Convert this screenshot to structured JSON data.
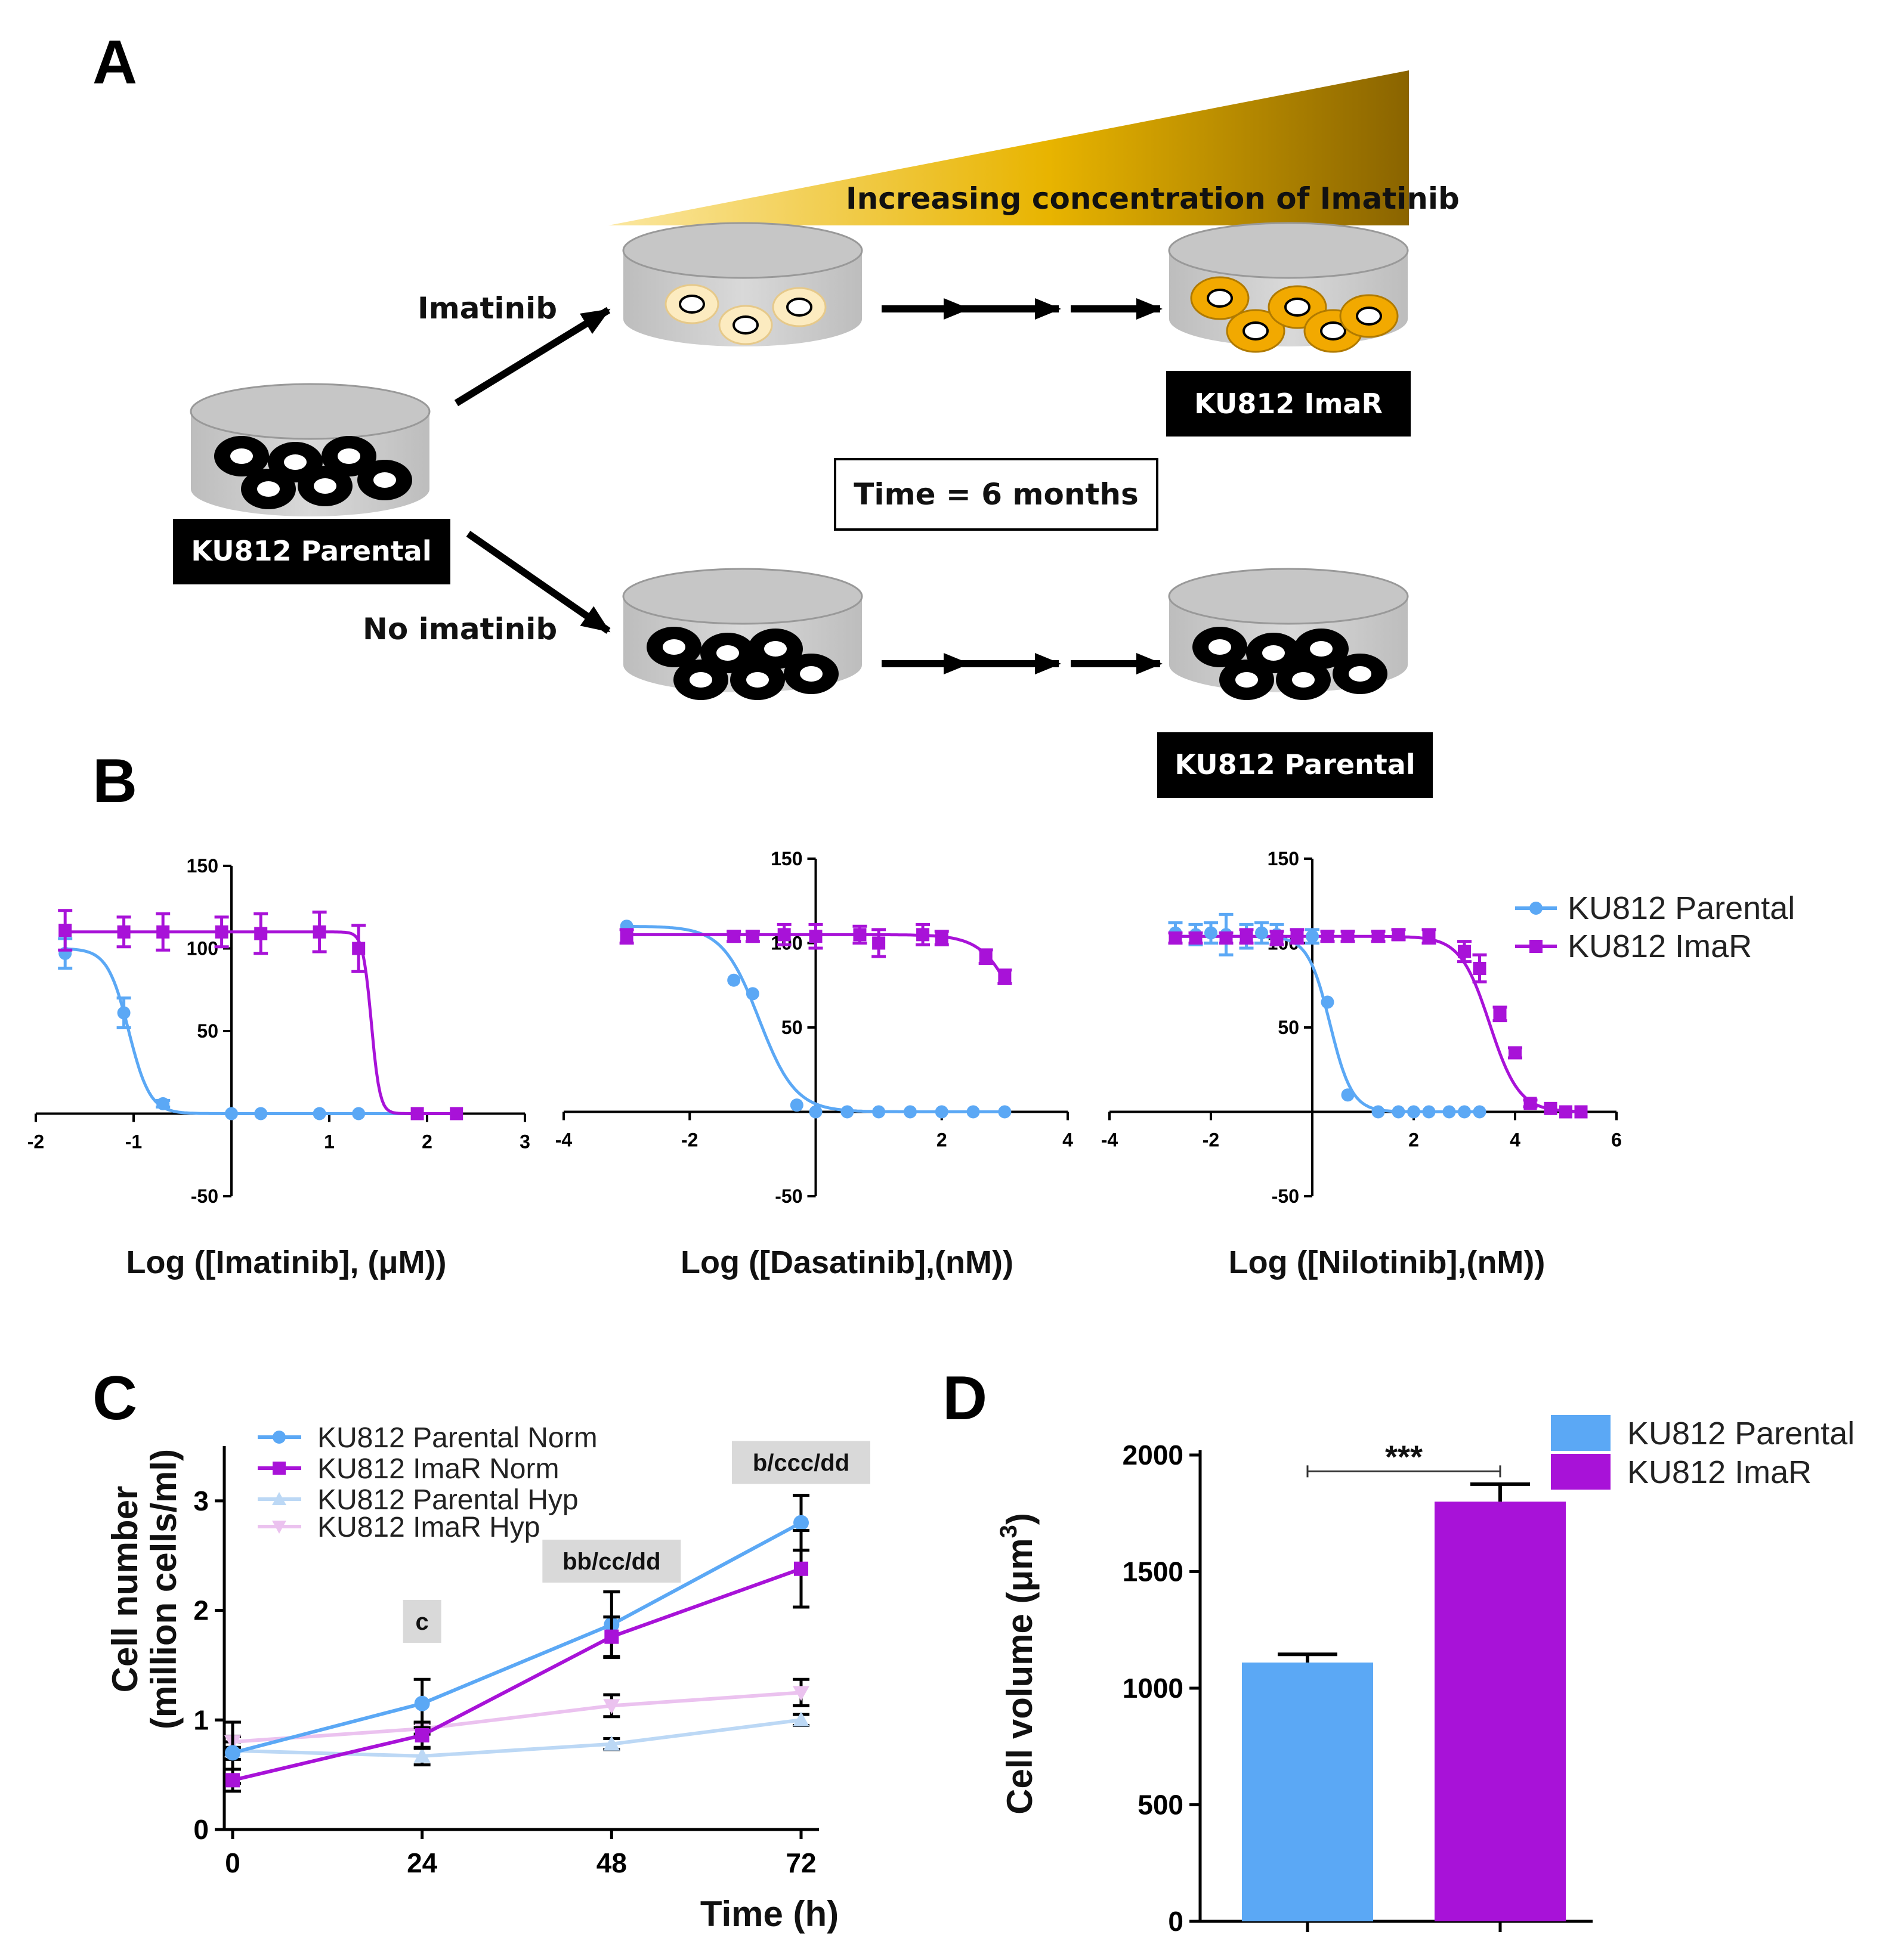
{
  "panel_a": {
    "letter": "A",
    "gradient_label": "Increasing concentration of Imatinib",
    "imatinib_label": "Imatinib",
    "no_imatinib_label": "No imatinib",
    "start_box": "KU812 Parental",
    "top_end_box": "KU812 ImaR",
    "bottom_end_box": "KU812 Parental",
    "time_box": "Time = 6 months",
    "colors": {
      "gradient_start": "#FBE7A0",
      "gradient_end": "#8A6400",
      "resistant_cell": "#F2A900",
      "early_cell": "#FCEBC0"
    }
  },
  "panel_b_letter": "B",
  "panel_c_letter": "C",
  "panel_d_letter": "D",
  "colors": {
    "parental": "#5BA8F5",
    "imar": "#A812D8",
    "parental_hyp": "#BCD8F5",
    "imar_hyp": "#EBC2EF"
  },
  "chart_data": [
    {
      "id": "b1",
      "type": "line",
      "xlabel": "Log ([Imatinib], (μM))",
      "xlim": [
        -2,
        3
      ],
      "ylim": [
        -50,
        150
      ],
      "xticks": [
        "-2",
        "-1",
        "1",
        "2",
        "3"
      ],
      "yticks": [
        "150",
        "100",
        "50",
        "-50"
      ],
      "series": [
        {
          "name": "KU812 Parental",
          "ic": -1.05,
          "top": 100,
          "hill": 4,
          "x": [
            -1.7,
            -1.1,
            -0.7,
            0,
            0.3,
            0.9,
            1.3,
            1.9,
            2.3
          ],
          "y": [
            97,
            61,
            6,
            0,
            0,
            0,
            0,
            0,
            0
          ],
          "err": [
            9,
            9,
            2,
            0,
            0,
            0,
            0,
            0,
            0
          ]
        },
        {
          "name": "KU812 ImaR",
          "ic": 1.43,
          "top": 110,
          "hill": 10,
          "x": [
            -1.7,
            -1.1,
            -0.7,
            -0.1,
            0.3,
            0.9,
            1.3,
            1.9,
            2.3
          ],
          "y": [
            111,
            110,
            110,
            110,
            109,
            110,
            100,
            0,
            0
          ],
          "err": [
            12,
            9,
            11,
            9,
            12,
            12,
            14,
            0,
            0
          ]
        }
      ]
    },
    {
      "id": "b2",
      "type": "line",
      "xlabel": "Log ([Dasatinib],(nM))",
      "xlim": [
        -4,
        4
      ],
      "ylim": [
        -50,
        150
      ],
      "xticks": [
        "-4",
        "-2",
        "2",
        "4"
      ],
      "yticks": [
        "150",
        "100",
        "50",
        "-50"
      ],
      "series": [
        {
          "name": "KU812 Parental",
          "ic": -0.9,
          "top": 110,
          "hill": 1.5,
          "x": [
            -3,
            -1.3,
            -1,
            -0.3,
            0,
            0.5,
            1,
            1.5,
            2,
            2.5,
            3
          ],
          "y": [
            110,
            78,
            70,
            4,
            0,
            0,
            0,
            0,
            0,
            0,
            0
          ],
          "err": [
            0,
            0,
            0,
            0,
            0,
            0,
            0,
            0,
            0,
            0,
            0
          ]
        },
        {
          "name": "KU812 ImaR",
          "ic": 3.3,
          "top": 105,
          "hill": 1.5,
          "x": [
            -3,
            -1.3,
            -1,
            -0.5,
            0,
            0.7,
            1,
            1.7,
            2,
            2.7,
            3
          ],
          "y": [
            104,
            104,
            104,
            105,
            104,
            105,
            100,
            105,
            103,
            92,
            80
          ],
          "err": [
            4,
            3,
            3,
            6,
            7,
            5,
            8,
            6,
            4,
            4,
            4
          ]
        }
      ]
    },
    {
      "id": "b3",
      "type": "line",
      "xlabel": "Log ([Nilotinib],(nM))",
      "xlim": [
        -4,
        6
      ],
      "ylim": [
        -50,
        150
      ],
      "xticks": [
        "-4",
        "-2",
        "2",
        "4",
        "6"
      ],
      "yticks": [
        "150",
        "100",
        "50",
        "-50"
      ],
      "series": [
        {
          "name": "KU812 Parental",
          "ic": 0.35,
          "top": 104,
          "hill": 2,
          "x": [
            -2.7,
            -2.3,
            -2,
            -1.7,
            -1.3,
            -1,
            -0.7,
            -0.3,
            0,
            0.3,
            0.7,
            1.3,
            1.7,
            2,
            2.3,
            2.7,
            3,
            3.3
          ],
          "y": [
            106,
            105,
            106,
            105,
            104,
            106,
            105,
            104,
            104,
            65,
            10,
            0,
            0,
            0,
            0,
            0,
            0,
            0
          ],
          "err": [
            6,
            6,
            6,
            12,
            7,
            6,
            6,
            4,
            4,
            0,
            0,
            0,
            0,
            0,
            0,
            0,
            0,
            0
          ]
        },
        {
          "name": "KU812 ImaR",
          "ic": 3.5,
          "top": 104,
          "hill": 1.5,
          "x": [
            -2.7,
            -2.3,
            -1.7,
            -1.3,
            -0.7,
            -0.3,
            0.3,
            0.7,
            1.3,
            1.7,
            2.3,
            3,
            3.3,
            3.7,
            4,
            4.3,
            4.7,
            5,
            5.3
          ],
          "y": [
            103,
            103,
            103,
            104,
            103,
            104,
            104,
            104,
            104,
            105,
            104,
            95,
            85,
            58,
            35,
            5,
            2,
            0,
            0
          ],
          "err": [
            3,
            3,
            3,
            4,
            4,
            4,
            3,
            3,
            3,
            3,
            4,
            6,
            8,
            4,
            3,
            2,
            0,
            0,
            0
          ]
        }
      ]
    },
    {
      "id": "c",
      "type": "line",
      "title": "",
      "xlabel": "Time (h)",
      "ylabel_line1": "Cell number",
      "ylabel_line2": "(million cells/ml)",
      "xlim": [
        0,
        72
      ],
      "ylim": [
        0,
        3.5
      ],
      "xticks": [
        "0",
        "24",
        "48",
        "72"
      ],
      "yticks": [
        "0",
        "1",
        "2",
        "3"
      ],
      "series": [
        {
          "name": "KU812 Parental Norm",
          "x": [
            0,
            24,
            48,
            72
          ],
          "y": [
            0.7,
            1.15,
            1.87,
            2.8
          ],
          "err": [
            0.28,
            0.22,
            0.3,
            0.25
          ]
        },
        {
          "name": "KU812 ImaR Norm",
          "x": [
            0,
            24,
            48,
            72
          ],
          "y": [
            0.45,
            0.86,
            1.76,
            2.38
          ],
          "err": [
            0.1,
            0.12,
            0.18,
            0.35
          ]
        },
        {
          "name": "KU812 Parental Hyp",
          "x": [
            0,
            24,
            48,
            72
          ],
          "y": [
            0.72,
            0.67,
            0.78,
            1.0
          ],
          "err": [
            0.08,
            0.08,
            0.05,
            0.05
          ]
        },
        {
          "name": "KU812 ImaR Hyp",
          "x": [
            0,
            24,
            48,
            72
          ],
          "y": [
            0.8,
            0.92,
            1.13,
            1.25
          ],
          "err": [
            0.05,
            0.05,
            0.1,
            0.12
          ]
        }
      ],
      "annotations": [
        {
          "x": 24,
          "y": 1.9,
          "text": "c"
        },
        {
          "x": 48,
          "y": 2.45,
          "text": "bb/cc/dd"
        },
        {
          "x": 72,
          "y": 3.35,
          "text": "b/ccc/dd"
        }
      ]
    },
    {
      "id": "d",
      "type": "bar",
      "ylabel": "Cell volume (μm",
      "ylabel_sup": "3",
      "ylabel_close": ")",
      "ylim": [
        0,
        2000
      ],
      "yticks": [
        "0",
        "500",
        "1000",
        "1500",
        "2000"
      ],
      "categories": [
        "KU812 Parental",
        "KU812 ImaR"
      ],
      "values": [
        1110,
        1800
      ],
      "errors": [
        35,
        75
      ],
      "significance": "***"
    }
  ]
}
